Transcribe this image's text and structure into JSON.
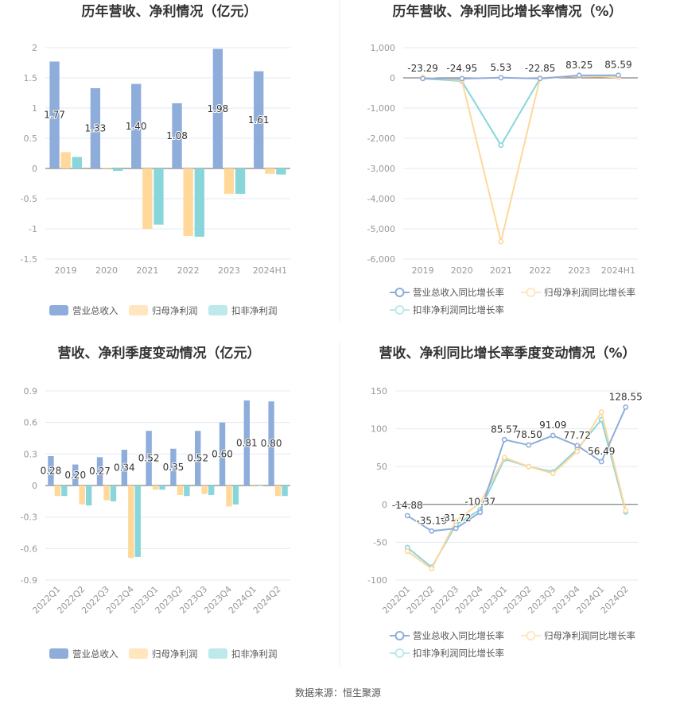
{
  "colors": {
    "revenue": "#8eaddb",
    "net_profit": "#ffd89a",
    "deducted": "#88d6da",
    "legend_net": "#ffe6bf",
    "legend_ded": "#bde9eb"
  },
  "source": "数据来源：恒生聚源",
  "chart_data": [
    {
      "type": "bar",
      "title": "历年营收、净利情况（亿元）",
      "categories": [
        "2019",
        "2020",
        "2021",
        "2022",
        "2023",
        "2024H1"
      ],
      "ylim": [
        -1.5,
        2
      ],
      "yticks": [
        "2",
        "1.5",
        "1",
        "0.5",
        "0",
        "-0.5",
        "-1",
        "-1.5"
      ],
      "ytick_values": [
        2,
        1.5,
        1,
        0.5,
        0,
        -0.5,
        -1,
        -1.5
      ],
      "series": [
        {
          "name": "营业总收入",
          "values": [
            1.77,
            1.33,
            1.4,
            1.08,
            1.98,
            1.61
          ],
          "labels": [
            "1.77",
            "1.33",
            "1.40",
            "1.08",
            "1.98",
            "1.61"
          ]
        },
        {
          "name": "归母净利润",
          "values": [
            0.27,
            0.01,
            -1.0,
            -1.12,
            -0.42,
            -0.09
          ]
        },
        {
          "name": "扣非净利润",
          "values": [
            0.19,
            -0.04,
            -0.93,
            -1.13,
            -0.42,
            -0.1
          ]
        }
      ],
      "legend": "bottom"
    },
    {
      "type": "line",
      "title": "历年营收、净利同比增长率情况（%）",
      "categories": [
        "2019",
        "2020",
        "2021",
        "2022",
        "2023",
        "2024H1"
      ],
      "ylim": [
        -6000,
        1000
      ],
      "yticks": [
        "1,000",
        "0",
        "-1,000",
        "-2,000",
        "-3,000",
        "-4,000",
        "-5,000",
        "-6,000"
      ],
      "ytick_values": [
        1000,
        0,
        -1000,
        -2000,
        -3000,
        -4000,
        -5000,
        -6000
      ],
      "series": [
        {
          "name": "营业总收入同比增长率",
          "values": [
            -23.29,
            -24.95,
            5.53,
            -22.85,
            83.25,
            85.59
          ],
          "labels": [
            "-23.29",
            "-24.95",
            "5.53",
            "-22.85",
            "83.25",
            "85.59"
          ]
        },
        {
          "name": "归母净利润同比增长率",
          "values": [
            10,
            -80,
            -5420,
            -10,
            60,
            20
          ]
        },
        {
          "name": "扣非净利润同比增长率",
          "values": [
            -20,
            -110,
            -2230,
            -20,
            70,
            30
          ]
        }
      ],
      "legend": "bottom"
    },
    {
      "type": "bar",
      "title": "营收、净利季度变动情况（亿元）",
      "categories": [
        "2022Q1",
        "2022Q2",
        "2022Q3",
        "2022Q4",
        "2023Q1",
        "2023Q2",
        "2023Q3",
        "2023Q4",
        "2024Q1",
        "2024Q2"
      ],
      "ylim": [
        -0.9,
        0.9
      ],
      "yticks": [
        "0.9",
        "0.6",
        "0.3",
        "0",
        "-0.3",
        "-0.6",
        "-0.9"
      ],
      "ytick_values": [
        0.9,
        0.6,
        0.3,
        0,
        -0.3,
        -0.6,
        -0.9
      ],
      "series": [
        {
          "name": "营业总收入",
          "values": [
            0.28,
            0.2,
            0.27,
            0.34,
            0.52,
            0.35,
            0.52,
            0.6,
            0.81,
            0.8
          ],
          "labels": [
            "0.28",
            "0.20",
            "0.27",
            "0.34",
            "0.52",
            "0.35",
            "0.52",
            "0.60",
            "0.81",
            "0.80"
          ]
        },
        {
          "name": "归母净利润",
          "values": [
            -0.1,
            -0.18,
            -0.14,
            -0.69,
            -0.04,
            -0.09,
            -0.08,
            -0.2,
            0.01,
            -0.1
          ]
        },
        {
          "name": "扣非净利润",
          "values": [
            -0.1,
            -0.19,
            -0.15,
            -0.68,
            -0.04,
            -0.1,
            -0.09,
            -0.18,
            0.0,
            -0.1
          ]
        }
      ],
      "legend": "bottom"
    },
    {
      "type": "line",
      "title": "营收、净利同比增长率季度变动情况（%）",
      "categories": [
        "2022Q1",
        "2022Q2",
        "2022Q3",
        "2022Q4",
        "2023Q1",
        "2023Q2",
        "2023Q3",
        "2023Q4",
        "2024Q1",
        "2024Q2"
      ],
      "ylim": [
        -100,
        150
      ],
      "yticks": [
        "150",
        "100",
        "50",
        "0",
        "-50",
        "-100"
      ],
      "ytick_values": [
        150,
        100,
        50,
        0,
        -50,
        -100
      ],
      "series": [
        {
          "name": "营业总收入同比增长率",
          "values": [
            -14.88,
            -35.19,
            -31.72,
            -10.37,
            85.57,
            78.5,
            91.09,
            77.72,
            56.49,
            128.55
          ],
          "labels": [
            "-14.88",
            "-35.19",
            "-31.72",
            "-10.37",
            "85.57",
            "78.50",
            "91.09",
            "77.72",
            "56.49",
            "128.55"
          ]
        },
        {
          "name": "归母净利润同比增长率",
          "values": [
            -62,
            -85,
            -22,
            2,
            62,
            50,
            41,
            70,
            122,
            -8
          ]
        },
        {
          "name": "扣非净利润同比增长率",
          "values": [
            -57,
            -83,
            -27,
            -7,
            60,
            50,
            43,
            73,
            112,
            -10
          ]
        }
      ],
      "legend": "bottom"
    }
  ]
}
